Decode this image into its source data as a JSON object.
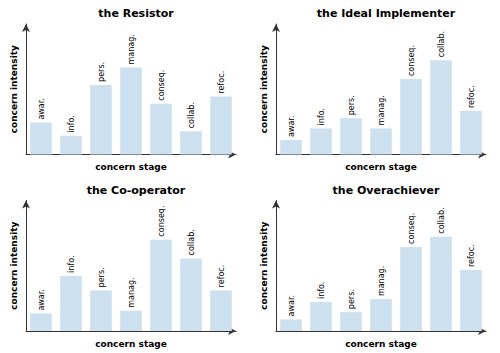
{
  "chart_data": [
    {
      "type": "bar",
      "title": "the Resistor",
      "categories": [
        "awar.",
        "info.",
        "pers.",
        "manag.",
        "conseq.",
        "collab.",
        "refoc."
      ],
      "values": [
        2.2,
        1.3,
        4.8,
        6.0,
        3.5,
        1.6,
        4.0
      ],
      "color": "#cce0f0",
      "xlabel": "concern stage",
      "ylabel": "concern intensity",
      "ylim": [
        0,
        9.0
      ],
      "tick_labels": false,
      "grid": false
    },
    {
      "type": "bar",
      "title": "the Ideal Implementer",
      "categories": [
        "awar.",
        "info.",
        "pers.",
        "manag.",
        "conseq.",
        "collab.",
        "refoc."
      ],
      "values": [
        1.0,
        1.8,
        2.5,
        1.8,
        5.2,
        6.5,
        3.0
      ],
      "color": "#cce0f0",
      "xlabel": "concern stage",
      "ylabel": "concern intensity",
      "ylim": [
        0,
        9.0
      ],
      "tick_labels": false,
      "grid": false
    },
    {
      "type": "bar",
      "title": "the Co-operator",
      "categories": [
        "awar.",
        "info.",
        "pers.",
        "manag.",
        "conseq.",
        "collab.",
        "refoc."
      ],
      "values": [
        1.2,
        3.8,
        2.8,
        1.4,
        6.3,
        5.0,
        2.8
      ],
      "color": "#cce0f0",
      "xlabel": "concern stage",
      "ylabel": "concern intensity",
      "ylim": [
        0,
        9.0
      ],
      "tick_labels": false,
      "grid": false
    },
    {
      "type": "bar",
      "title": "the Overachiever",
      "categories": [
        "awar.",
        "info.",
        "pers.",
        "manag.",
        "conseq.",
        "collab.",
        "refoc."
      ],
      "values": [
        0.8,
        2.0,
        1.3,
        2.2,
        5.8,
        6.5,
        4.2
      ],
      "color": "#cce0f0",
      "xlabel": "concern stage",
      "ylabel": "concern intensity",
      "ylim": [
        0,
        9.0
      ],
      "tick_labels": false,
      "grid": false
    }
  ]
}
